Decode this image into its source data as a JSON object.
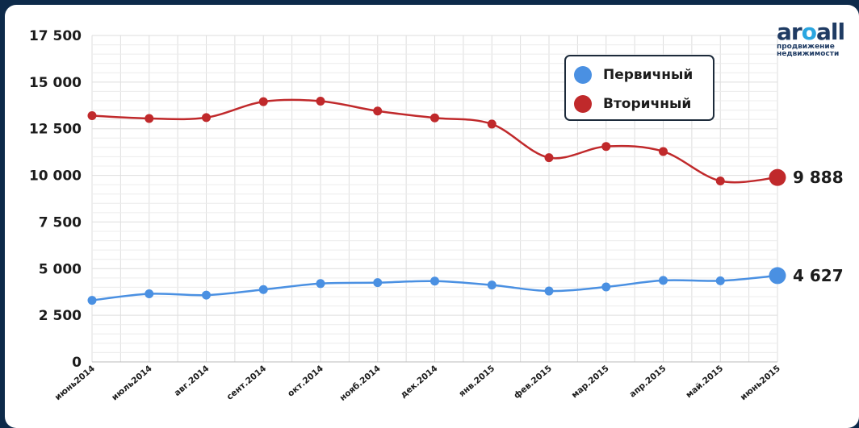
{
  "chart_data": {
    "type": "line",
    "categories": [
      "июнь2014",
      "июль2014",
      "авг.2014",
      "сент.2014",
      "окт.2014",
      "нояб.2014",
      "дек.2014",
      "янв.2015",
      "фев.2015",
      "мар.2015",
      "апр.2015",
      "май.2015",
      "июнь2015"
    ],
    "series": [
      {
        "name": "Первичный",
        "color": "#4a90e2",
        "values": [
          3300,
          3650,
          3580,
          3880,
          4200,
          4250,
          4330,
          4120,
          3800,
          4020,
          4370,
          4350,
          4627
        ]
      },
      {
        "name": "Вторичный",
        "color": "#c0292b",
        "values": [
          13200,
          13050,
          13100,
          13950,
          13980,
          13450,
          13080,
          12750,
          10950,
          11550,
          11280,
          9700,
          9888
        ]
      }
    ],
    "ytick_labels": [
      "0",
      "2 500",
      "5 000",
      "7 500",
      "10 000",
      "12 500",
      "15 000",
      "17 500"
    ],
    "ylim": [
      0,
      17500
    ],
    "end_labels": [
      "4 627",
      "9 888"
    ],
    "grid": true,
    "legend_position": "top-right"
  },
  "logo": {
    "word_start": "ar",
    "word_o": "o",
    "word_end": "all",
    "line1": "продвижение",
    "line2": "недвижимости"
  }
}
